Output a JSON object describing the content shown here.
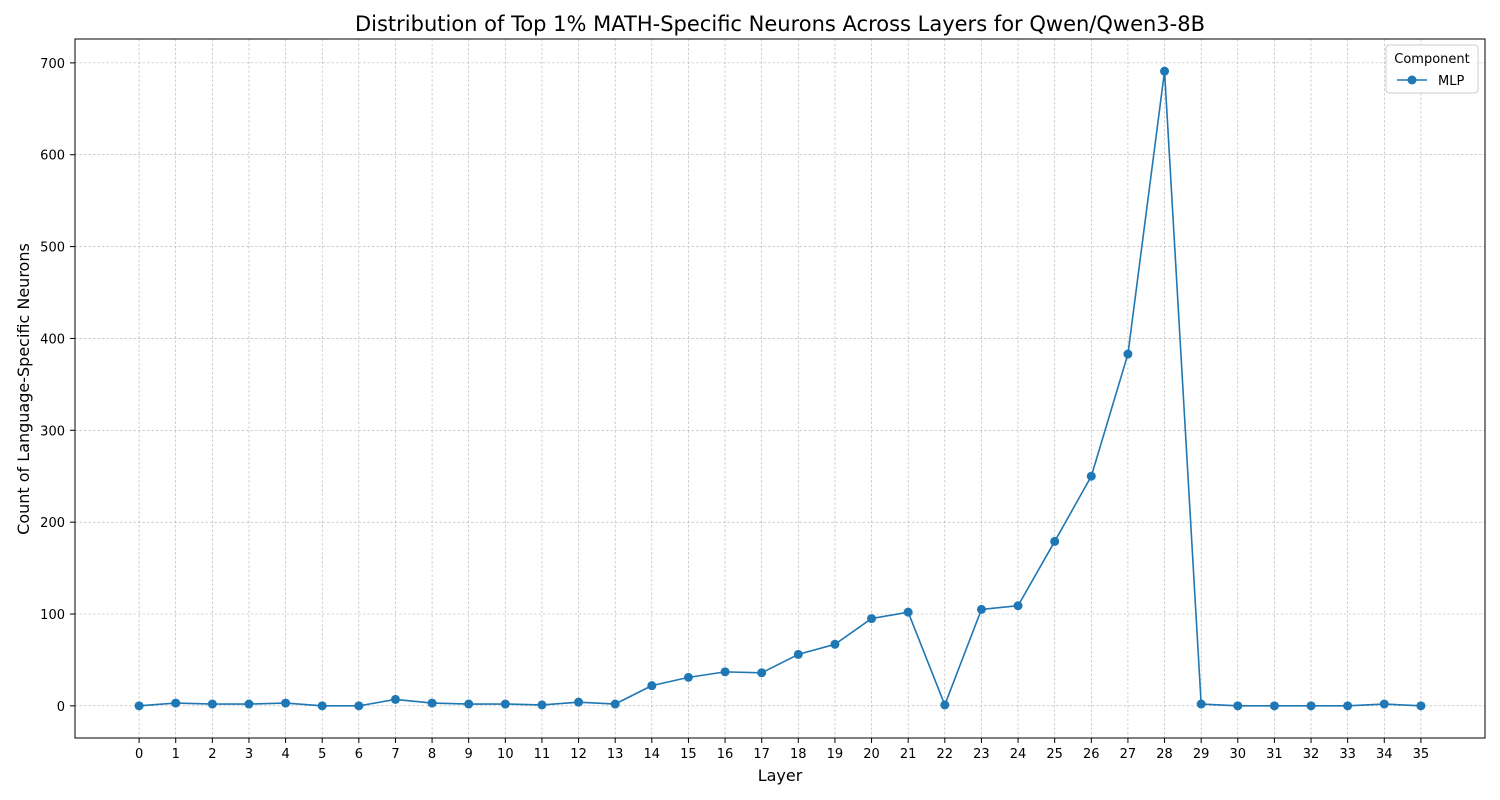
{
  "chart_data": {
    "type": "line",
    "title": "Distribution of Top 1% MATH-Specific Neurons Across Layers for Qwen/Qwen3-8B",
    "xlabel": "Layer",
    "ylabel": "Count of Language-Specific Neurons",
    "x": [
      0,
      1,
      2,
      3,
      4,
      5,
      6,
      7,
      8,
      9,
      10,
      11,
      12,
      13,
      14,
      15,
      16,
      17,
      18,
      19,
      20,
      21,
      22,
      23,
      24,
      25,
      26,
      27,
      28,
      29,
      30,
      31,
      32,
      33,
      34,
      35
    ],
    "y_ticks": [
      0,
      100,
      200,
      300,
      400,
      500,
      600,
      700
    ],
    "ylim": [
      -35,
      726
    ],
    "xlim": [
      -1.75,
      36.75
    ],
    "grid": true,
    "legend": {
      "title": "Component",
      "placement": "top-right"
    },
    "series": [
      {
        "name": "MLP",
        "color": "#1f77b4",
        "values": [
          0,
          3,
          2,
          2,
          3,
          0,
          0,
          7,
          3,
          2,
          2,
          1,
          4,
          2,
          22,
          31,
          37,
          36,
          56,
          67,
          95,
          102,
          1,
          105,
          109,
          179,
          250,
          383,
          691,
          2,
          0,
          0,
          0,
          0,
          2,
          0
        ]
      }
    ]
  }
}
